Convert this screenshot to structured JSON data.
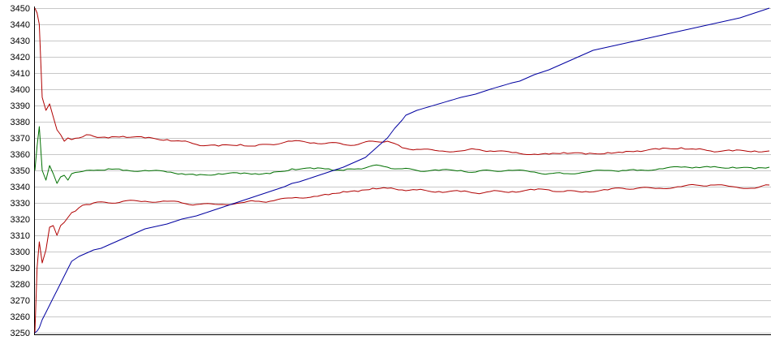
{
  "chart_data": {
    "type": "line",
    "title": "",
    "xlabel": "",
    "ylabel": "",
    "ylim": [
      3250,
      3450
    ],
    "y_ticks": [
      3250,
      3260,
      3270,
      3280,
      3290,
      3300,
      3310,
      3320,
      3330,
      3340,
      3350,
      3360,
      3370,
      3380,
      3390,
      3400,
      3410,
      3420,
      3430,
      3440,
      3450
    ],
    "grid": true,
    "legend": "none",
    "xlim": [
      0,
      100
    ],
    "series": [
      {
        "color": "#b00000",
        "x": [
          0,
          0.3,
          0.6,
          1,
          1.5,
          2,
          2.5,
          3,
          3.5,
          4,
          4.5,
          5,
          6,
          7,
          8,
          10,
          12,
          15,
          18,
          20,
          22,
          25,
          28,
          30,
          32,
          35,
          38,
          40,
          42,
          44,
          46,
          48,
          50,
          52,
          55,
          58,
          60,
          62,
          65,
          68,
          70,
          72,
          75,
          78,
          80,
          82,
          85,
          88,
          90,
          92,
          95,
          98,
          100
        ],
        "values": [
          3450,
          3447,
          3440,
          3395,
          3387,
          3391,
          3383,
          3375,
          3372,
          3368,
          3370,
          3369,
          3370,
          3372,
          3371,
          3370,
          3371,
          3370,
          3369,
          3368,
          3366,
          3365,
          3366,
          3365,
          3366,
          3368,
          3367,
          3367,
          3366,
          3366,
          3368,
          3368,
          3364,
          3363,
          3362,
          3362,
          3363,
          3362,
          3361,
          3360,
          3360,
          3361,
          3360,
          3361,
          3361,
          3362,
          3363,
          3364,
          3363,
          3362,
          3362,
          3362,
          3362
        ]
      },
      {
        "color": "#007000",
        "x": [
          0,
          0.3,
          0.6,
          1,
          1.5,
          2,
          2.5,
          3,
          3.5,
          4,
          4.5,
          5,
          6,
          7,
          8,
          10,
          12,
          15,
          18,
          20,
          22,
          25,
          28,
          30,
          32,
          35,
          38,
          40,
          42,
          44,
          46,
          48,
          50,
          52,
          55,
          58,
          60,
          62,
          65,
          68,
          70,
          72,
          75,
          78,
          80,
          82,
          85,
          88,
          90,
          92,
          95,
          98,
          100
        ],
        "values": [
          3350,
          3365,
          3377,
          3350,
          3344,
          3353,
          3348,
          3342,
          3346,
          3347,
          3344,
          3348,
          3349,
          3350,
          3350,
          3351,
          3350,
          3350,
          3349,
          3348,
          3347,
          3348,
          3348,
          3348,
          3348,
          3351,
          3351,
          3351,
          3350,
          3351,
          3353,
          3352,
          3351,
          3350,
          3350,
          3350,
          3349,
          3350,
          3350,
          3349,
          3348,
          3348,
          3349,
          3350,
          3350,
          3350,
          3351,
          3352,
          3352,
          3352,
          3352,
          3351,
          3352
        ]
      },
      {
        "color": "#b00000",
        "x": [
          0,
          0.3,
          0.6,
          1,
          1.5,
          2,
          2.5,
          3,
          3.5,
          4,
          4.5,
          5,
          6,
          7,
          8,
          10,
          12,
          15,
          18,
          20,
          22,
          25,
          28,
          30,
          32,
          35,
          38,
          40,
          42,
          44,
          46,
          48,
          50,
          52,
          55,
          58,
          60,
          62,
          65,
          68,
          70,
          72,
          75,
          78,
          80,
          82,
          85,
          88,
          90,
          92,
          95,
          98,
          100
        ],
        "values": [
          3250,
          3290,
          3306,
          3293,
          3301,
          3315,
          3316,
          3310,
          3316,
          3318,
          3321,
          3324,
          3327,
          3329,
          3330,
          3330,
          3331,
          3331,
          3331,
          3330,
          3329,
          3329,
          3330,
          3331,
          3331,
          3333,
          3334,
          3335,
          3337,
          3337,
          3339,
          3339,
          3338,
          3338,
          3337,
          3337,
          3336,
          3337,
          3337,
          3338,
          3338,
          3337,
          3337,
          3338,
          3339,
          3339,
          3339,
          3340,
          3341,
          3341,
          3340,
          3339,
          3341
        ]
      },
      {
        "color": "#0000a0",
        "x": [
          0,
          0.3,
          0.6,
          1,
          2,
          3,
          4,
          5,
          6,
          7,
          8,
          9,
          10,
          12,
          14,
          15,
          16,
          18,
          20,
          22,
          24,
          26,
          28,
          30,
          32,
          34,
          35,
          36,
          38,
          40,
          42,
          44,
          45,
          46,
          47,
          48,
          49,
          50,
          50.5,
          51,
          52,
          55,
          58,
          60,
          62,
          65,
          66,
          68,
          70,
          72,
          74,
          76,
          78,
          80,
          82,
          84,
          86,
          88,
          90,
          92,
          94,
          96,
          98,
          100
        ],
        "values": [
          3250,
          3251,
          3253,
          3258,
          3267,
          3276,
          3285,
          3294,
          3297,
          3299,
          3301,
          3302,
          3304,
          3308,
          3312,
          3314,
          3315,
          3317,
          3320,
          3322,
          3325,
          3328,
          3331,
          3334,
          3337,
          3340,
          3342,
          3343,
          3346,
          3349,
          3352,
          3356,
          3358,
          3362,
          3366,
          3370,
          3376,
          3381,
          3384,
          3385,
          3387,
          3391,
          3395,
          3397,
          3400,
          3404,
          3405,
          3409,
          3412,
          3416,
          3420,
          3424,
          3426,
          3428,
          3430,
          3432,
          3434,
          3436,
          3438,
          3440,
          3442,
          3444,
          3447,
          3450
        ]
      }
    ]
  }
}
